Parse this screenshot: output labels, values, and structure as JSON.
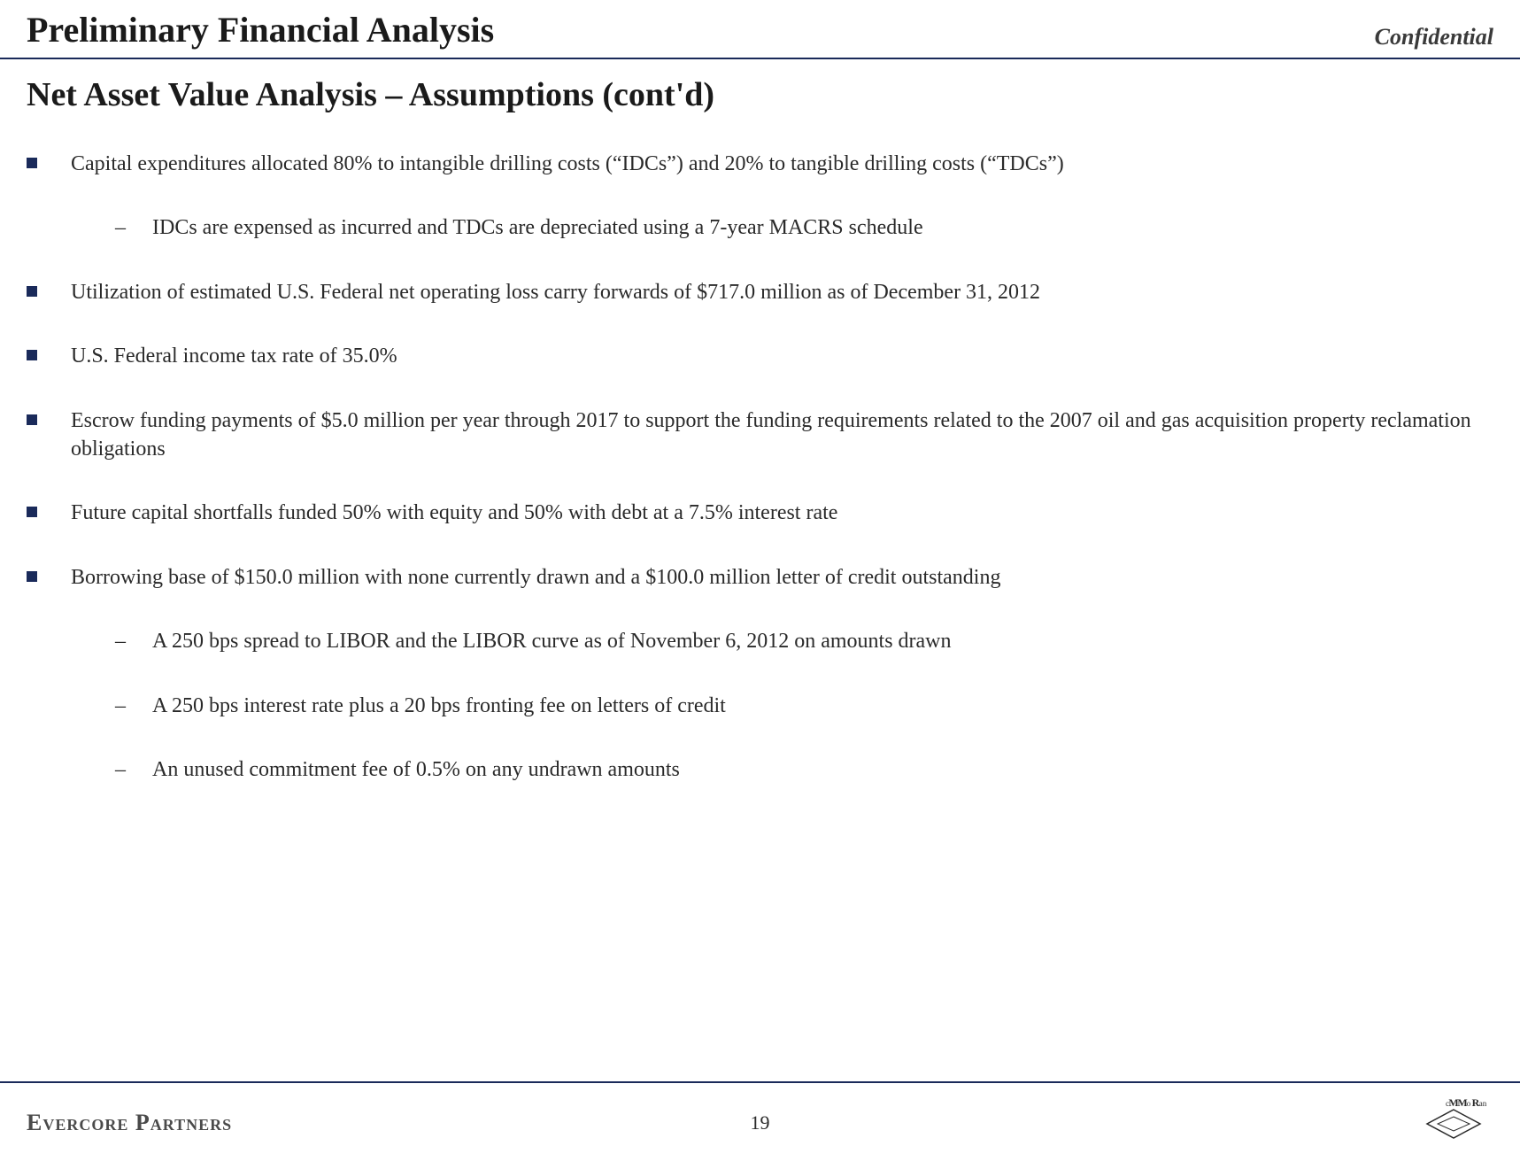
{
  "colors": {
    "rule": "#1a2a5a",
    "text": "#2a2a2a",
    "heading": "#1a1a1a",
    "background": "#ffffff"
  },
  "header": {
    "title": "Preliminary Financial Analysis",
    "confidential": "Confidential"
  },
  "subtitle": "Net Asset Value Analysis – Assumptions (cont'd)",
  "bullets": [
    {
      "text": "Capital expenditures allocated 80% to intangible drilling costs (“IDCs”) and 20% to tangible drilling costs (“TDCs”)",
      "subs": [
        "IDCs are expensed as incurred and TDCs are depreciated using a 7-year MACRS schedule"
      ]
    },
    {
      "text": "Utilization of estimated U.S. Federal net operating loss carry forwards of $717.0 million as of December 31, 2012",
      "subs": []
    },
    {
      "text": "U.S. Federal income tax rate of 35.0%",
      "subs": []
    },
    {
      "text": "Escrow funding payments of $5.0 million per year through 2017 to support the funding requirements related to the 2007 oil and gas acquisition property reclamation obligations",
      "subs": []
    },
    {
      "text": "Future capital shortfalls funded 50% with equity and 50% with debt at a 7.5% interest rate",
      "subs": []
    },
    {
      "text": "Borrowing base of $150.0 million with none currently drawn and a $100.0 million letter of credit outstanding",
      "subs": [
        "A 250 bps spread to LIBOR and the LIBOR curve as of November 6, 2012 on amounts drawn",
        "A 250 bps interest rate plus a 20 bps fronting fee on letters of credit",
        "An unused commitment fee of 0.5% on any undrawn amounts"
      ]
    }
  ],
  "footer": {
    "left": "Evercore Partners",
    "page": "19",
    "logo_text": "McMoRan"
  }
}
